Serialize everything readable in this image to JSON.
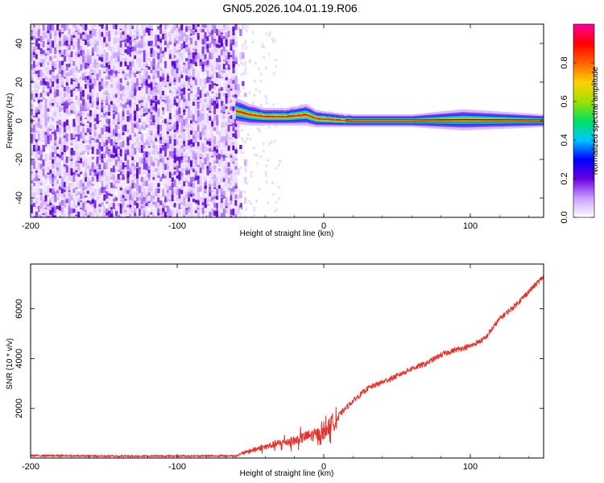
{
  "figure": {
    "title": "GN05.2026.104.01.19.R06"
  },
  "chart_data": [
    {
      "type": "heatmap",
      "name": "spectrogram",
      "xlabel": "Height of straight line (km)",
      "ylabel": "Frequency (Hz)",
      "xlim": [
        -200,
        150
      ],
      "ylim": [
        -50,
        50
      ],
      "xticks": [
        -200,
        -100,
        0,
        100
      ],
      "xtick_labels": [
        "-200",
        "-100",
        "0",
        "100"
      ],
      "yticks": [
        -40,
        -20,
        0,
        20,
        40
      ],
      "ytick_labels": [
        "-40",
        "-20",
        "0",
        "20",
        "40"
      ],
      "noise_region_x": [
        -200,
        -60
      ],
      "signal_center_frequency": 0,
      "signal_trace": [
        {
          "x": -60,
          "f": 5,
          "halfwidth": 3
        },
        {
          "x": -50,
          "f": 3,
          "halfwidth": 2.5
        },
        {
          "x": -40,
          "f": 2,
          "halfwidth": 2
        },
        {
          "x": -25,
          "f": 2,
          "halfwidth": 2
        },
        {
          "x": -12,
          "f": 3,
          "halfwidth": 2.5
        },
        {
          "x": -5,
          "f": 1,
          "halfwidth": 2
        },
        {
          "x": 15,
          "f": 0,
          "halfwidth": 1.5
        },
        {
          "x": 60,
          "f": 0,
          "halfwidth": 1.5
        },
        {
          "x": 95,
          "f": 0.5,
          "halfwidth": 2.5
        },
        {
          "x": 150,
          "f": 0,
          "halfwidth": 1.5
        }
      ],
      "colorbar": {
        "label": "Normalized spectral amplitude",
        "range": [
          0,
          1
        ],
        "ticks": [
          0.0,
          0.2,
          0.4,
          0.6,
          0.8
        ],
        "tick_labels": [
          "0.0",
          "0.2",
          "0.4",
          "0.6",
          "0.8"
        ],
        "colors": [
          "#ffffff",
          "#c8a0ff",
          "#6a00e0",
          "#0000ff",
          "#00c8ff",
          "#00e060",
          "#a0e000",
          "#ffd000",
          "#ff6000",
          "#ff0000",
          "#ff00a0"
        ]
      }
    },
    {
      "type": "line",
      "name": "snr",
      "xlabel": "Height of straight line (km)",
      "ylabel": "SNR (10 * v/v)",
      "xlim": [
        -200,
        150
      ],
      "ylim": [
        0,
        7800
      ],
      "xticks": [
        -200,
        -100,
        0,
        100
      ],
      "xtick_labels": [
        "-200",
        "-100",
        "0",
        "100"
      ],
      "yticks": [
        2000,
        4000,
        6000
      ],
      "ytick_labels": [
        "2000",
        "4000",
        "6000"
      ],
      "color": "#e8302a",
      "series": [
        {
          "name": "SNR",
          "x": [
            -200,
            -150,
            -100,
            -60,
            -50,
            -40,
            -30,
            -20,
            -10,
            0,
            10,
            20,
            30,
            40,
            50,
            60,
            70,
            80,
            90,
            100,
            110,
            120,
            130,
            140,
            150
          ],
          "y": [
            100,
            80,
            80,
            90,
            300,
            450,
            600,
            700,
            900,
            1000,
            1700,
            2300,
            2800,
            3050,
            3300,
            3600,
            3800,
            4150,
            4350,
            4500,
            4800,
            5600,
            6100,
            6700,
            7300
          ]
        }
      ]
    }
  ]
}
